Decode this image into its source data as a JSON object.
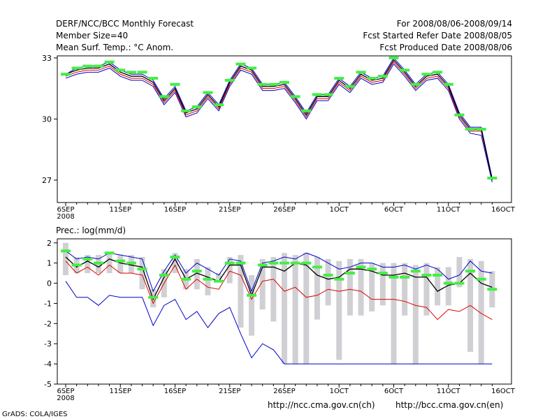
{
  "header": {
    "title": "DERF/NCC/BCC Monthly Forecast",
    "member_size": "Member Size=40",
    "variable": "Mean Surf. Temp.: °C Anom.",
    "period": "For 2008/08/06-2008/09/14",
    "started": "Fcst Started Refer Date 2008/08/05",
    "produced": "Fcst Produced Date 2008/08/06"
  },
  "footer": {
    "url_ch": "http://ncc.cma.gov.cn(ch)",
    "url_en": "http://bcc.cma.gov.cn(en)",
    "credit": "GrADS: COLA/IGES"
  },
  "colors": {
    "max": "#0000cc",
    "min": "#dd0000",
    "mean": "#000000",
    "marker": "#44ee44",
    "spread": "#d0d0d4"
  },
  "chart_data": [
    {
      "type": "line",
      "title": "Mean Surf. Temp.",
      "x_tick_labels": [
        "6SEP",
        "11SEP",
        "16SEP",
        "21SEP",
        "26SEP",
        "1OCT",
        "6OCT",
        "11OCT",
        "16OCT"
      ],
      "x_sub_label": "2008",
      "x_days": [
        0,
        1,
        2,
        3,
        4,
        5,
        6,
        7,
        8,
        9,
        10,
        11,
        12,
        13,
        14,
        15,
        16,
        17,
        18,
        19,
        20,
        21,
        22,
        23,
        24,
        25,
        26,
        27,
        28,
        29,
        30,
        31,
        32,
        33,
        34,
        35,
        36,
        37,
        38,
        39
      ],
      "ylim": [
        25.9,
        33.1
      ],
      "yticks": [
        27,
        30,
        33
      ],
      "series": [
        {
          "name": "max",
          "values": [
            32.2,
            32.5,
            32.6,
            32.6,
            32.8,
            32.4,
            32.2,
            32.2,
            31.9,
            31.0,
            31.6,
            30.4,
            30.6,
            31.3,
            30.7,
            31.9,
            32.7,
            32.5,
            31.7,
            31.7,
            31.8,
            31.1,
            30.3,
            31.2,
            31.2,
            32.0,
            31.6,
            32.3,
            32.0,
            32.1,
            33.0,
            32.4,
            31.7,
            32.2,
            32.3,
            31.7,
            30.3,
            29.6,
            29.6,
            27.1
          ]
        },
        {
          "name": "mean",
          "values": [
            32.2,
            32.4,
            32.5,
            32.5,
            32.7,
            32.3,
            32.1,
            32.1,
            31.8,
            30.9,
            31.5,
            30.3,
            30.5,
            31.2,
            30.6,
            31.8,
            32.6,
            32.4,
            31.6,
            31.6,
            31.7,
            31.0,
            30.2,
            31.1,
            31.1,
            31.9,
            31.5,
            32.2,
            31.9,
            32.0,
            32.9,
            32.3,
            31.6,
            32.1,
            32.2,
            31.6,
            30.2,
            29.5,
            29.5,
            27.0
          ]
        },
        {
          "name": "min",
          "values": [
            32.1,
            32.3,
            32.4,
            32.4,
            32.6,
            32.2,
            32.0,
            32.0,
            31.7,
            30.8,
            31.4,
            30.2,
            30.4,
            31.1,
            30.5,
            31.7,
            32.5,
            32.3,
            31.5,
            31.5,
            31.6,
            30.9,
            30.1,
            31.0,
            31.0,
            31.8,
            31.4,
            32.1,
            31.8,
            31.9,
            32.8,
            32.2,
            31.5,
            32.0,
            32.1,
            31.5,
            30.1,
            29.4,
            29.4,
            27.0
          ]
        },
        {
          "name": "lower",
          "values": [
            32.0,
            32.2,
            32.3,
            32.3,
            32.5,
            32.1,
            31.9,
            31.9,
            31.6,
            30.7,
            31.3,
            30.1,
            30.3,
            31.0,
            30.4,
            31.6,
            32.4,
            32.2,
            31.4,
            31.4,
            31.5,
            30.8,
            30.0,
            30.9,
            30.9,
            31.7,
            31.3,
            32.0,
            31.7,
            31.8,
            32.7,
            32.1,
            31.4,
            31.9,
            32.0,
            31.4,
            30.0,
            29.3,
            29.2,
            26.9
          ]
        },
        {
          "name": "marker",
          "values": [
            32.2,
            32.5,
            32.6,
            32.6,
            32.8,
            32.4,
            32.3,
            32.3,
            32.0,
            31.1,
            31.7,
            30.4,
            30.6,
            31.3,
            30.7,
            31.9,
            32.7,
            32.5,
            31.7,
            31.7,
            31.8,
            31.1,
            30.4,
            31.2,
            31.2,
            32.0,
            31.6,
            32.3,
            32.0,
            32.1,
            33.0,
            32.4,
            31.7,
            32.2,
            32.3,
            31.7,
            30.2,
            29.5,
            29.5,
            27.1
          ]
        }
      ]
    },
    {
      "type": "line",
      "title": "Prec.: log(mm/d)",
      "x_tick_labels": [
        "6SEP",
        "11SEP",
        "16SEP",
        "21SEP",
        "26SEP",
        "1OCT",
        "6OCT",
        "11OCT",
        "16OCT"
      ],
      "x_sub_label": "2008",
      "x_days": [
        0,
        1,
        2,
        3,
        4,
        5,
        6,
        7,
        8,
        9,
        10,
        11,
        12,
        13,
        14,
        15,
        16,
        17,
        18,
        19,
        20,
        21,
        22,
        23,
        24,
        25,
        26,
        27,
        28,
        29,
        30,
        31,
        32,
        33,
        34,
        35,
        36,
        37,
        38,
        39
      ],
      "ylim": [
        -5,
        2.2
      ],
      "yticks": [
        -5,
        -4,
        -3,
        -2,
        -1,
        0,
        1,
        2
      ],
      "series": [
        {
          "name": "max",
          "values": [
            1.6,
            1.2,
            1.3,
            1.2,
            1.5,
            1.4,
            1.3,
            1.2,
            -0.4,
            0.6,
            1.4,
            0.5,
            1.0,
            0.7,
            0.4,
            1.2,
            1.1,
            -0.4,
            1.0,
            1.1,
            1.3,
            1.2,
            1.5,
            1.3,
            1.0,
            0.7,
            0.8,
            1.0,
            1.0,
            0.8,
            0.8,
            0.9,
            0.7,
            0.9,
            0.7,
            0.2,
            0.4,
            1.1,
            0.6,
            0.5
          ]
        },
        {
          "name": "mean",
          "values": [
            1.3,
            0.8,
            1.1,
            0.8,
            1.2,
            1.0,
            0.9,
            0.8,
            -0.8,
            0.3,
            1.2,
            0.2,
            0.5,
            0.3,
            0.1,
            0.9,
            0.9,
            -0.6,
            0.8,
            0.8,
            0.6,
            1.0,
            0.9,
            0.4,
            0.2,
            0.3,
            0.7,
            0.7,
            0.6,
            0.4,
            0.4,
            0.5,
            0.3,
            0.3,
            -0.4,
            -0.1,
            0.0,
            0.5,
            0.0,
            -0.2
          ]
        },
        {
          "name": "min",
          "values": [
            1.1,
            0.5,
            0.8,
            0.4,
            0.9,
            0.5,
            0.5,
            0.4,
            -1.0,
            0.0,
            0.9,
            -0.3,
            0.2,
            -0.2,
            -0.3,
            0.6,
            0.4,
            -0.8,
            0.1,
            0.2,
            -0.4,
            -0.2,
            -0.7,
            -0.6,
            -0.3,
            -0.4,
            -0.3,
            -0.4,
            -0.8,
            -0.8,
            -0.8,
            -0.9,
            -1.1,
            -1.2,
            -1.8,
            -1.3,
            -1.4,
            -1.1,
            -1.5,
            -1.8
          ]
        },
        {
          "name": "lower",
          "values": [
            0.1,
            -0.7,
            -0.7,
            -1.1,
            -0.6,
            -0.7,
            -0.7,
            -0.7,
            -2.1,
            -1.1,
            -0.8,
            -1.8,
            -1.4,
            -2.2,
            -1.5,
            -1.2,
            -2.5,
            -3.7,
            -3.0,
            -3.3,
            -4.0,
            -4.0,
            -4.0,
            -4.0,
            -4.0,
            -4.0,
            -4.0,
            -4.0,
            -4.0,
            -4.0,
            -4.0,
            -4.0,
            -4.0,
            -4.0,
            -4.0,
            -4.0,
            -4.0,
            -4.0,
            -4.0,
            -4.0
          ]
        },
        {
          "name": "marker",
          "values": [
            1.6,
            0.9,
            1.2,
            1.0,
            1.5,
            1.1,
            1.0,
            0.7,
            -0.7,
            0.4,
            1.3,
            0.2,
            0.6,
            0.2,
            0.1,
            1.0,
            1.0,
            -0.6,
            0.9,
            1.0,
            1.0,
            1.0,
            1.0,
            0.8,
            0.4,
            0.2,
            0.5,
            0.8,
            0.7,
            0.5,
            0.3,
            0.3,
            0.6,
            0.4,
            0.4,
            0.0,
            0.0,
            0.6,
            0.2,
            -0.3
          ]
        },
        {
          "name": "spread_top",
          "values": [
            2.0,
            1.3,
            1.4,
            1.4,
            1.5,
            1.4,
            1.4,
            1.3,
            -0.3,
            0.7,
            1.5,
            0.7,
            1.2,
            0.8,
            0.5,
            1.3,
            1.4,
            0.4,
            1.2,
            1.3,
            1.5,
            1.4,
            1.5,
            1.3,
            1.2,
            1.1,
            1.2,
            1.2,
            1.0,
            1.0,
            1.0,
            1.0,
            0.9,
            1.0,
            0.8,
            0.8,
            1.3,
            1.2,
            1.1,
            0.6
          ]
        },
        {
          "name": "spread_bottom",
          "values": [
            0.4,
            0.5,
            0.5,
            0.5,
            0.5,
            0.5,
            0.5,
            -0.3,
            -1.2,
            -0.7,
            0.5,
            -0.3,
            -0.3,
            -0.6,
            0.2,
            0.0,
            -2.2,
            -2.6,
            -1.3,
            -1.9,
            -4.0,
            -4.0,
            -4.0,
            -1.8,
            -1.1,
            -3.8,
            -1.6,
            -1.6,
            -1.4,
            -1.1,
            -4.0,
            -1.6,
            -4.0,
            -1.6,
            -1.1,
            -1.1,
            -0.2,
            -3.4,
            -4.0,
            -1.2
          ]
        }
      ]
    }
  ]
}
